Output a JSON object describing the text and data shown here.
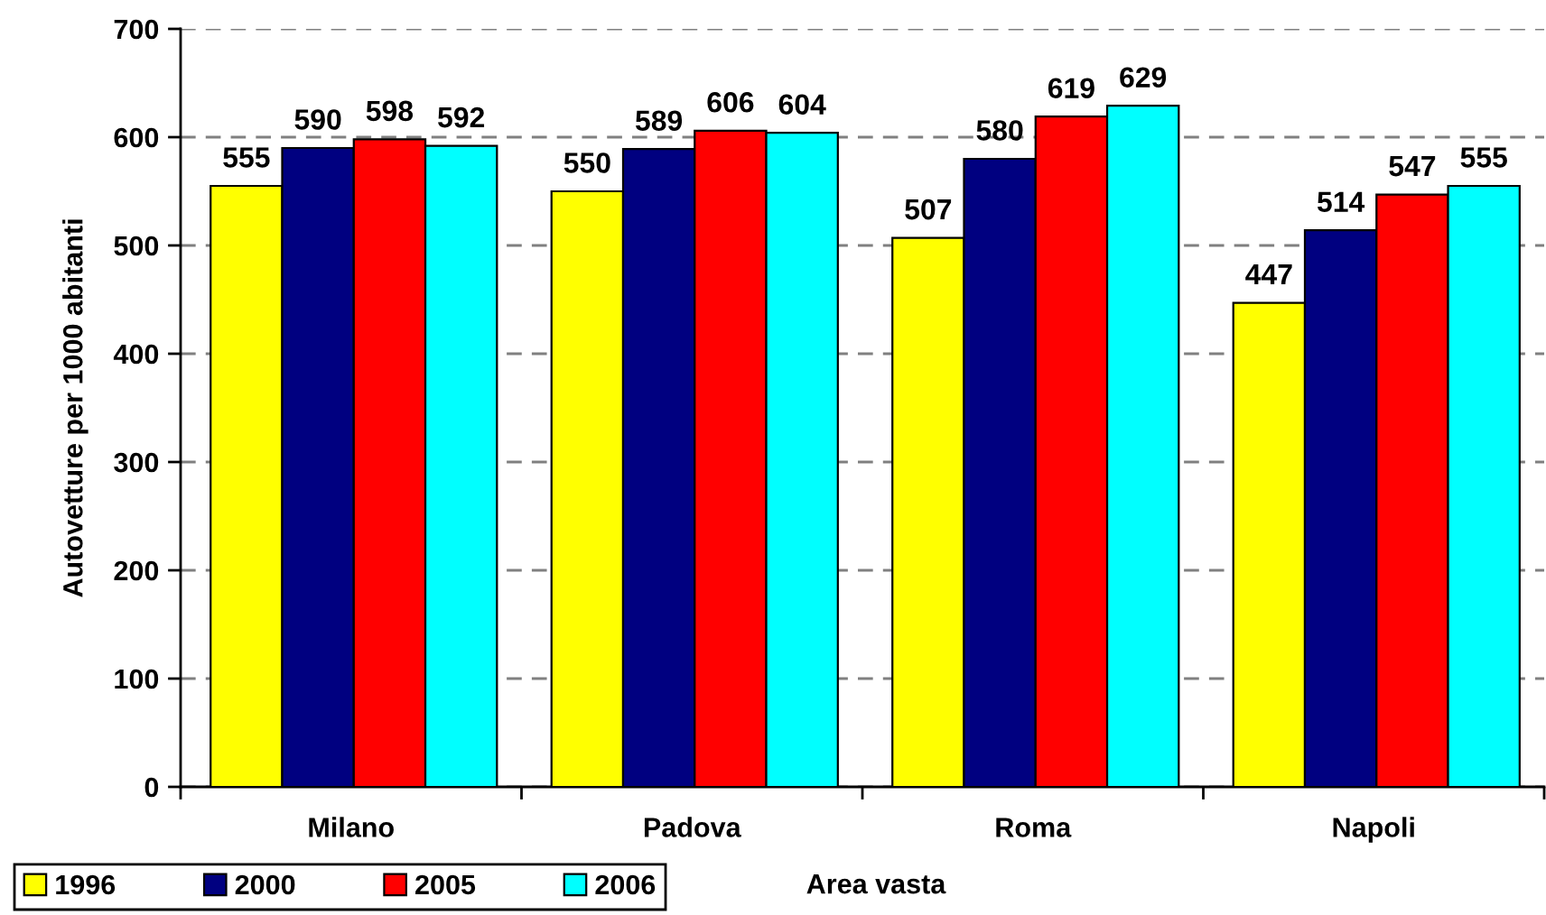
{
  "chart_data": {
    "type": "bar",
    "xlabel": "Area vasta",
    "ylabel": "Autovetture per 1000 abitanti",
    "categories": [
      "Milano",
      "Padova",
      "Roma",
      "Napoli"
    ],
    "series": [
      {
        "name": "1996",
        "color": "#ffff00",
        "values": [
          555,
          550,
          507,
          447
        ]
      },
      {
        "name": "2000",
        "color": "#000080",
        "values": [
          590,
          589,
          580,
          514
        ]
      },
      {
        "name": "2005",
        "color": "#ff0000",
        "values": [
          598,
          606,
          619,
          547
        ]
      },
      {
        "name": "2006",
        "color": "#00ffff",
        "values": [
          592,
          604,
          629,
          555
        ]
      }
    ],
    "ylim": [
      0,
      700
    ],
    "yticks": [
      0,
      100,
      200,
      300,
      400,
      500,
      600,
      700
    ],
    "grid": "y",
    "legend": "bottom left",
    "data_labels": true
  }
}
